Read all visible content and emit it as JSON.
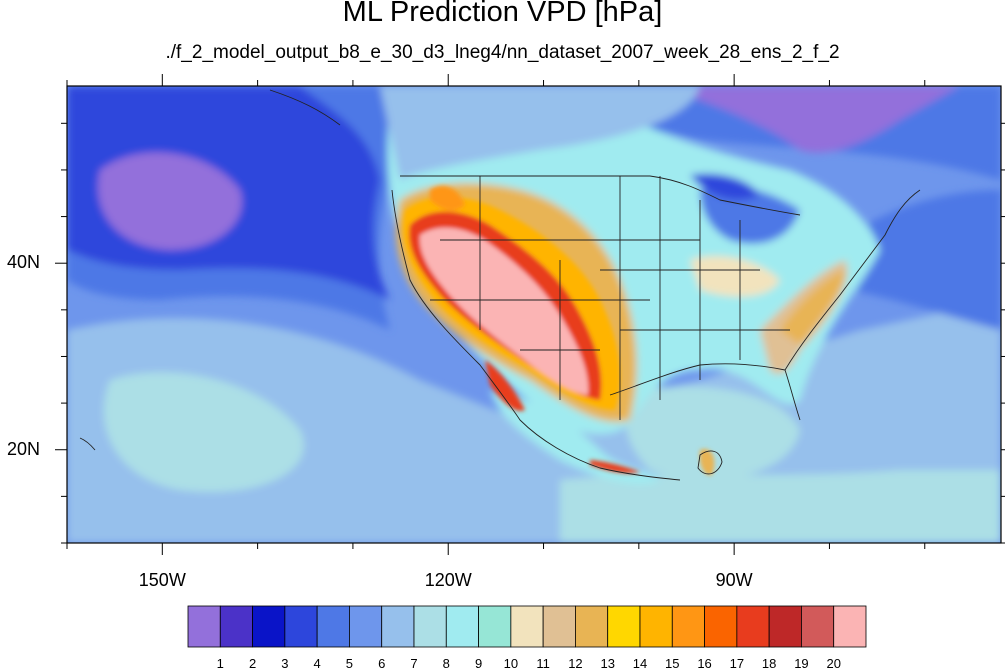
{
  "title": "ML Prediction VPD [hPa]",
  "subtitle": "./f_2_model_output_b8_e_30_d3_lneg4/nn_dataset_2007_week_28_ens_2_f_2",
  "map": {
    "lon_range": [
      -160,
      -62
    ],
    "lat_range": [
      10,
      59
    ],
    "lat_ticks": [
      {
        "value": 40,
        "label": "40N"
      },
      {
        "value": 20,
        "label": "20N"
      }
    ],
    "lon_ticks": [
      {
        "value": -150,
        "label": "150W"
      },
      {
        "value": -120,
        "label": "120W"
      },
      {
        "value": -90,
        "label": "90W"
      }
    ]
  },
  "colorbar": {
    "labels": [
      "1",
      "2",
      "3",
      "4",
      "5",
      "6",
      "7",
      "8",
      "9",
      "10",
      "11",
      "12",
      "13",
      "14",
      "15",
      "16",
      "17",
      "18",
      "19",
      "20"
    ],
    "colors": [
      "#9370db",
      "#4b32c8",
      "#0a14c8",
      "#2d46dc",
      "#4e78e6",
      "#6e96ec",
      "#96c0ec",
      "#acdfe6",
      "#a0ebf0",
      "#96e6d6",
      "#f2e3bd",
      "#e0c094",
      "#e8b454",
      "#ffd700",
      "#ffb400",
      "#ff9614",
      "#fa6400",
      "#e83c1e",
      "#be2828",
      "#d25a5a",
      "#fbb4b4"
    ]
  }
}
